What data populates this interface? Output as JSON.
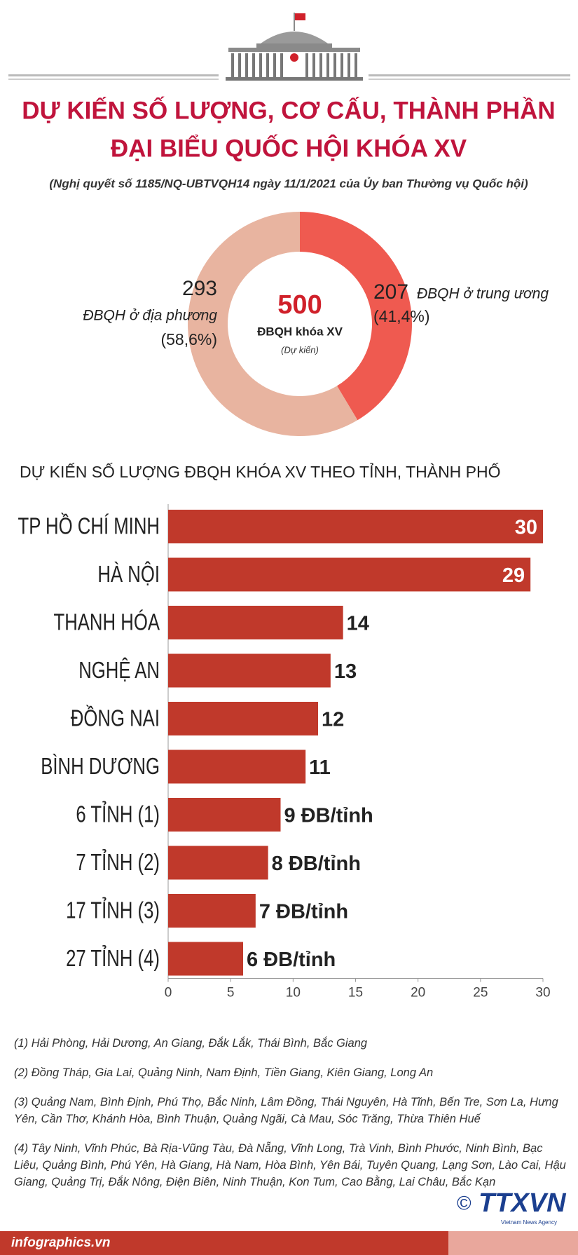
{
  "header": {
    "title_line1": "DỰ KIẾN SỐ LƯỢNG, CƠ CẤU, THÀNH PHẦN",
    "title_line2": "ĐẠI BIỂU QUỐC HỘI KHÓA XV",
    "subtitle": "(Nghị quyết số 1185/NQ-UBTVQH14 ngày 11/1/2021 của Ủy ban Thường vụ Quốc hội)"
  },
  "chart_data": [
    {
      "type": "pie",
      "total": 500,
      "center_label": "ĐBQH khóa XV",
      "center_note": "(Dự kiến)",
      "categories": [
        "ĐBQH ở trung ương",
        "ĐBQH ở địa phương"
      ],
      "values": [
        207,
        293
      ],
      "share_labels": [
        "(41,4%)",
        "(58,6%)"
      ],
      "colors": [
        "#ef5a50",
        "#e8b4a0"
      ]
    },
    {
      "type": "bar",
      "title": "DỰ KIẾN SỐ LƯỢNG ĐBQH KHÓA XV THEO TỈNH, THÀNH PHỐ",
      "categories": [
        "TP HỒ CHÍ MINH",
        "HÀ NỘI",
        "THANH HÓA",
        "NGHỆ AN",
        "ĐỒNG NAI",
        "BÌNH DƯƠNG",
        "6 TỈNH (1)",
        "7 TỈNH (2)",
        "17 TỈNH (3)",
        "27 TỈNH (4)"
      ],
      "values": [
        30,
        29,
        14,
        13,
        12,
        11,
        9,
        8,
        7,
        6
      ],
      "value_labels": [
        "30",
        "29",
        "14",
        "13",
        "12",
        "11",
        "9 ĐB/tỉnh",
        "8 ĐB/tỉnh",
        "7 ĐB/tỉnh",
        "6 ĐB/tỉnh"
      ],
      "color": "#c0392b",
      "xlim": [
        0,
        30
      ],
      "xticks": [
        0,
        5,
        10,
        15,
        20,
        25,
        30
      ]
    }
  ],
  "footnotes": [
    "(1) Hải Phòng, Hải Dương, An Giang, Đắk Lắk, Thái Bình, Bắc Giang",
    "(2) Đồng Tháp, Gia Lai, Quảng Ninh, Nam Định, Tiền Giang, Kiên Giang, Long An",
    "(3) Quảng Nam, Bình Định, Phú Thọ, Bắc Ninh, Lâm Đồng, Thái Nguyên, Hà Tĩnh, Bến Tre, Sơn La, Hưng Yên, Cần Thơ, Khánh Hòa, Bình Thuận, Quảng Ngãi, Cà Mau, Sóc Trăng, Thừa Thiên Huế",
    "(4) Tây Ninh, Vĩnh Phúc, Bà Rịa-Vũng Tàu, Đà Nẵng, Vĩnh Long, Trà Vinh, Bình Phước, Ninh Bình, Bạc Liêu, Quảng Bình, Phú Yên, Hà Giang, Hà Nam, Hòa Bình, Yên Bái, Tuyên Quang, Lạng Sơn, Lào Cai, Hậu Giang, Quảng Trị, Đắk Nông, Điện Biên, Ninh Thuận, Kon Tum, Cao Bằng, Lai Châu, Bắc Kạn"
  ],
  "footer": {
    "source": "infographics.vn",
    "copyright": "©",
    "logo": "TTXVN",
    "agency": "Vietnam News Agency"
  }
}
